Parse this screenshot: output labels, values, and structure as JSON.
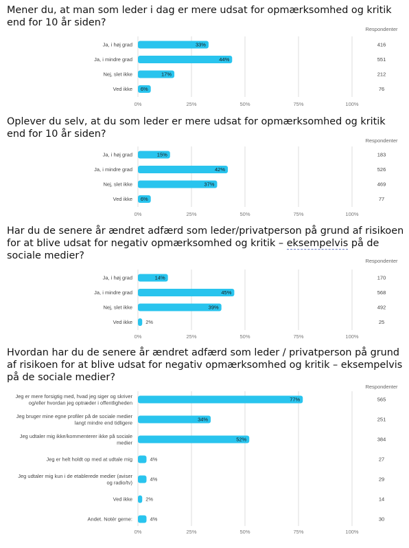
{
  "accent_color": "#29c4ee",
  "respondents_header": "Respondenter",
  "axis_ticks": [
    "0%",
    "25%",
    "50%",
    "75%",
    "100%"
  ],
  "chart_data": [
    {
      "type": "bar",
      "title": "Mener du, at man som leder i dag er mere udsat for opmærksomhed og kritik end for 10 år siden?",
      "xlim": [
        0,
        100
      ],
      "categories": [
        "Ja, i høj grad",
        "Ja, i mindre grad",
        "Nej, slet ikke",
        "Ved ikke"
      ],
      "values": [
        33,
        44,
        17,
        6
      ],
      "value_labels": [
        "33%",
        "44%",
        "17%",
        "6%"
      ],
      "respondents": [
        "416",
        "551",
        "212",
        "76"
      ]
    },
    {
      "type": "bar",
      "title": "Oplever du selv, at du som leder er mere udsat for opmærksomhed og kritik end for 10 år siden?",
      "xlim": [
        0,
        100
      ],
      "categories": [
        "Ja, i høj grad",
        "Ja, i mindre grad",
        "Nej, slet ikke",
        "Ved ikke"
      ],
      "values": [
        15,
        42,
        37,
        6
      ],
      "value_labels": [
        "15%",
        "42%",
        "37%",
        "6%"
      ],
      "respondents": [
        "183",
        "526",
        "469",
        "77"
      ]
    },
    {
      "type": "bar",
      "title_parts": [
        "Har du de senere år ændret adfærd som leder/privatperson på grund af risikoen for at blive udsat for negativ opmærksomhed og kritik – ",
        "eksempelvis",
        " på de sociale medier?"
      ],
      "xlim": [
        0,
        100
      ],
      "categories": [
        "Ja, i høj grad",
        "Ja, i mindre grad",
        "Nej, slet ikke",
        "Ved ikke"
      ],
      "values": [
        14,
        45,
        39,
        2
      ],
      "value_labels": [
        "14%",
        "45%",
        "39%",
        "2%"
      ],
      "respondents": [
        "170",
        "568",
        "492",
        "25"
      ]
    },
    {
      "type": "bar",
      "title": "Hvordan har du de senere år ændret adfærd som leder / privatperson på grund af risikoen for at blive udsat for negativ opmærksomhed og kritik – eksempelvis på de sociale medier?",
      "xlim": [
        0,
        100
      ],
      "categories": [
        [
          "Jeg er mere forsigtig med, hvad jeg siger og skriver",
          "og/eller hvordan jeg optræder i offentligheden"
        ],
        [
          "Jeg bruger mine egne profiler på de sociale medier",
          "langt mindre end tidligere"
        ],
        [
          "Jeg udtaler mig ikke/kommenterer ikke på sociale",
          "medier"
        ],
        [
          "Jeg er helt holdt op med at udtale mig"
        ],
        [
          "Jeg udtaler mig kun i de etablerede medier (aviser",
          "og radio/tv)"
        ],
        [
          "Ved ikke"
        ],
        [
          "Andet. Notér gerne:"
        ]
      ],
      "values": [
        77,
        34,
        52,
        4,
        4,
        2,
        4
      ],
      "value_labels": [
        "77%",
        "34%",
        "52%",
        "4%",
        "4%",
        "2%",
        "4%"
      ],
      "respondents": [
        "565",
        "251",
        "384",
        "27",
        "29",
        "14",
        "30"
      ]
    }
  ]
}
